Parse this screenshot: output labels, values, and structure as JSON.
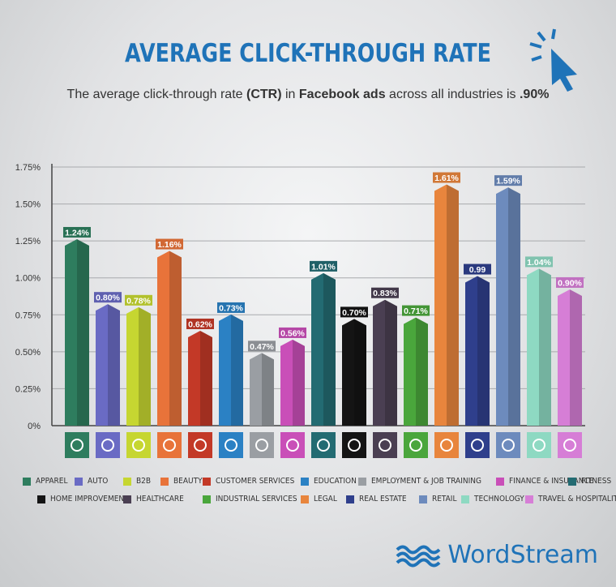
{
  "header": {
    "title": "AVERAGE CLICK-THROUGH RATE",
    "subtitle_pre": "The average click-through rate ",
    "subtitle_ctr": "(CTR)",
    "subtitle_mid": " in ",
    "subtitle_fb": "Facebook ads",
    "subtitle_post": " across all industries is ",
    "subtitle_avg": ".90%"
  },
  "brand": {
    "name": "WordStream",
    "color": "#1f73b8"
  },
  "chart_data": {
    "type": "bar",
    "ylim": [
      0,
      1.75
    ],
    "yticks": [
      "0%",
      "0.25%",
      "0.50%",
      "0.75%",
      "1.00%",
      "1.25%",
      "1.50%",
      "1.75%"
    ],
    "grid": true,
    "categories": [
      "APPAREL",
      "AUTO",
      "B2B",
      "BEAUTY",
      "CUSTOMER SERVICES",
      "EDUCATION",
      "EMPLOYMENT & JOB TRAINING",
      "FINANCE & INSURANCE",
      "FITNESS",
      "HOME IMPROVEMENT",
      "HEALTHCARE",
      "INDUSTRIAL SERVICES",
      "LEGAL",
      "REAL ESTATE",
      "RETAIL",
      "TECHNOLOGY",
      "TRAVEL & HOSPITALITY"
    ],
    "values": [
      1.24,
      0.8,
      0.78,
      1.16,
      0.62,
      0.73,
      0.47,
      0.56,
      1.01,
      0.7,
      0.83,
      0.71,
      1.61,
      0.99,
      1.59,
      1.04,
      0.9
    ],
    "labels": [
      "1.24%",
      "0.80%",
      "0.78%",
      "1.16%",
      "0.62%",
      "0.73%",
      "0.47%",
      "0.56%",
      "1.01%",
      "0.70%",
      "0.83%",
      "0.71%",
      "1.61%",
      "0.99",
      "1.59%",
      "1.04%",
      "0.90%"
    ],
    "colors": [
      "#2e7d5e",
      "#6a6bc4",
      "#c6d631",
      "#e8733a",
      "#c33927",
      "#2b81c4",
      "#9a9ea3",
      "#c94fb8",
      "#236b72",
      "#141414",
      "#4a3f52",
      "#4aa63c",
      "#e8853d",
      "#2f3f8c",
      "#6d8bbd",
      "#8ed9c2",
      "#d67ed6"
    ],
    "icons": [
      "tshirt-icon",
      "car-icon",
      "handshake-icon",
      "mirror-icon",
      "headset-icon",
      "book-icon",
      "briefcase-icon",
      "money-bag-icon",
      "muscle-icon",
      "tools-icon",
      "medical-kit-icon",
      "factory-icon",
      "gavel-icon",
      "house-icon",
      "tag-icon",
      "laptop-icon",
      "map-pin-icon"
    ],
    "legend_placement": "bottom"
  }
}
